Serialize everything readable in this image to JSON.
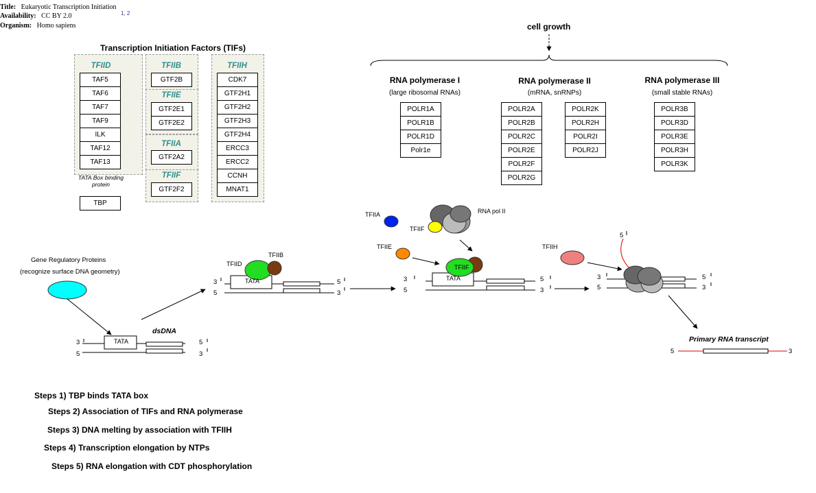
{
  "meta": {
    "title_label": "Title:",
    "title_value": "Eukaryotic Transcription Initiation",
    "title_sup": "1, 2",
    "availability_label": "Availability:",
    "availability_value": "CC BY 2.0",
    "organism_label": "Organism:",
    "organism_value": "Homo sapiens"
  },
  "tifs": {
    "title": "Transcription Initiation Factors (TIFs)",
    "tfiid": {
      "name": "TFIID",
      "genes": [
        "TAF5",
        "TAF6",
        "TAF7",
        "TAF9",
        "ILK",
        "TAF12",
        "TAF13"
      ]
    },
    "tata_label": "TATA Box binding protein",
    "tbp": "TBP",
    "tfiib": {
      "name": "TFIIB",
      "genes": [
        "GTF2B"
      ]
    },
    "tfiie": {
      "name": "TFIIE",
      "genes": [
        "GTF2E1",
        "GTF2E2"
      ]
    },
    "tfiia": {
      "name": "TFIIA",
      "genes": [
        "GTF2A2"
      ]
    },
    "tfiif": {
      "name": "TFIIF",
      "genes": [
        "GTF2F2"
      ]
    },
    "tfiih": {
      "name": "TFIIH",
      "genes": [
        "CDK7",
        "GTF2H1",
        "GTF2H2",
        "GTF2H3",
        "GTF2H4",
        "ERCC3",
        "ERCC2",
        "CCNH",
        "MNAT1"
      ]
    }
  },
  "polymerases": {
    "cell_growth": "cell growth",
    "pol1": {
      "name": "RNA polymerase I",
      "sub": "(large ribosomal RNAs)",
      "genes": [
        "POLR1A",
        "POLR1B",
        "POLR1D",
        "Polr1e"
      ]
    },
    "pol2": {
      "name": "RNA polymerase II",
      "sub": "(mRNA, snRNPs)",
      "genes_a": [
        "POLR2A",
        "POLR2B",
        "POLR2C",
        "POLR2E",
        "POLR2F",
        "POLR2G"
      ],
      "genes_b": [
        "POLR2K",
        "POLR2H",
        "POLR2I",
        "POLR2J"
      ]
    },
    "pol3": {
      "name": "RNA polymerase III",
      "sub": "(small stable RNAs)",
      "genes": [
        "POLR3B",
        "POLR3D",
        "POLR3E",
        "POLR3H",
        "POLR3K"
      ]
    }
  },
  "diagram": {
    "grp_line1": "Gene Regulatory Proteins",
    "grp_line2": "(recognize surface DNA geometry)",
    "dsdna": "dsDNA",
    "tata": "TATA",
    "tfiid": "TFIID",
    "tfiib": "TFIIB",
    "tfiia": "TFIIA",
    "tfiif": "TFIIF",
    "tfiie": "TFIIE",
    "tfiih": "TFIIH",
    "rna_pol_ii": "RNA pol II",
    "primary_rna": "Primary RNA transcript",
    "p3": "3",
    "p5": "5"
  },
  "steps": [
    "Steps 1) TBP binds TATA box",
    "Steps 2) Association of TIFs and RNA polymerase",
    "Steps 3) DNA melting by association with TFIIH",
    "Steps 4) Transcription elongation by NTPs",
    "Steps 5) RNA elongation with CDT phosphorylation"
  ],
  "colors": {
    "group_bg": "#f2f2e9",
    "tif_head": "#2f8f8f",
    "grp_protein": "#00ffff",
    "tfiid_green": "#22dd22",
    "tfiib_brown": "#7a3a10",
    "tfiia_blue": "#0022ee",
    "tfiif_yellow": "#ffff00",
    "tfiie_orange": "#ff8800",
    "tfiih_pink": "#f08080",
    "pol_grey": "#808080",
    "rna_red": "#dd0000"
  }
}
